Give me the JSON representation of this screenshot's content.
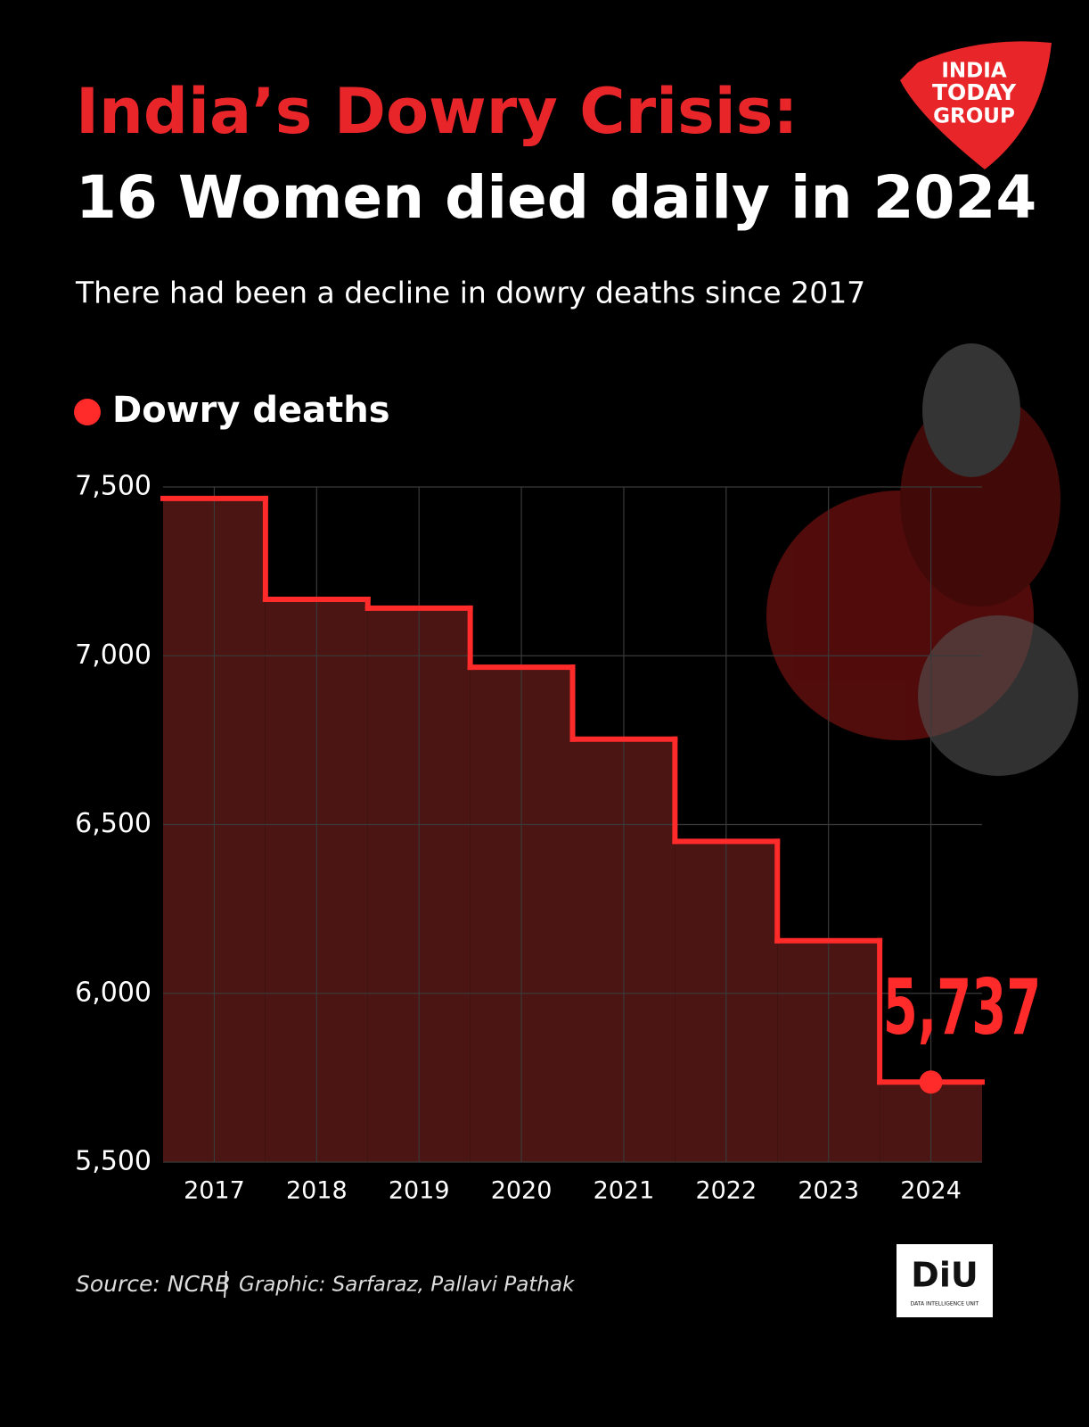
{
  "chart_data": {
    "type": "step",
    "title": "India’s Dowry Crisis:",
    "headline": "16 Women died daily in 2024",
    "subtitle": "There had been a decline in dowry deaths since 2017",
    "categories": [
      "2017",
      "2018",
      "2019",
      "2020",
      "2021",
      "2022",
      "2023",
      "2024"
    ],
    "series": [
      {
        "name": "Dowry deaths",
        "color": "#ff2a2a",
        "values": [
          7466,
          7167,
          7141,
          6966,
          6753,
          6450,
          6156,
          5737
        ],
        "value_labels": [
          null,
          null,
          null,
          null,
          null,
          null,
          null,
          "5,737"
        ]
      }
    ],
    "ylim": [
      5500,
      7500
    ],
    "yticks": [
      {
        "value": 5500,
        "label": "5,500"
      },
      {
        "value": 6000,
        "label": "6,000"
      },
      {
        "value": 6500,
        "label": "6,500"
      },
      {
        "value": 7000,
        "label": "7,000"
      },
      {
        "value": 7500,
        "label": "7,500"
      }
    ],
    "grid": true,
    "area_color": "#4a1512",
    "source": "Source: NCRB",
    "credit": "Graphic: Sarfaraz, Pallavi Pathak",
    "brand": [
      "INDIA",
      "TODAY",
      "GROUP"
    ],
    "unit_logo": "DiU",
    "unit_name": "DATA INTELLIGENCE UNIT"
  }
}
